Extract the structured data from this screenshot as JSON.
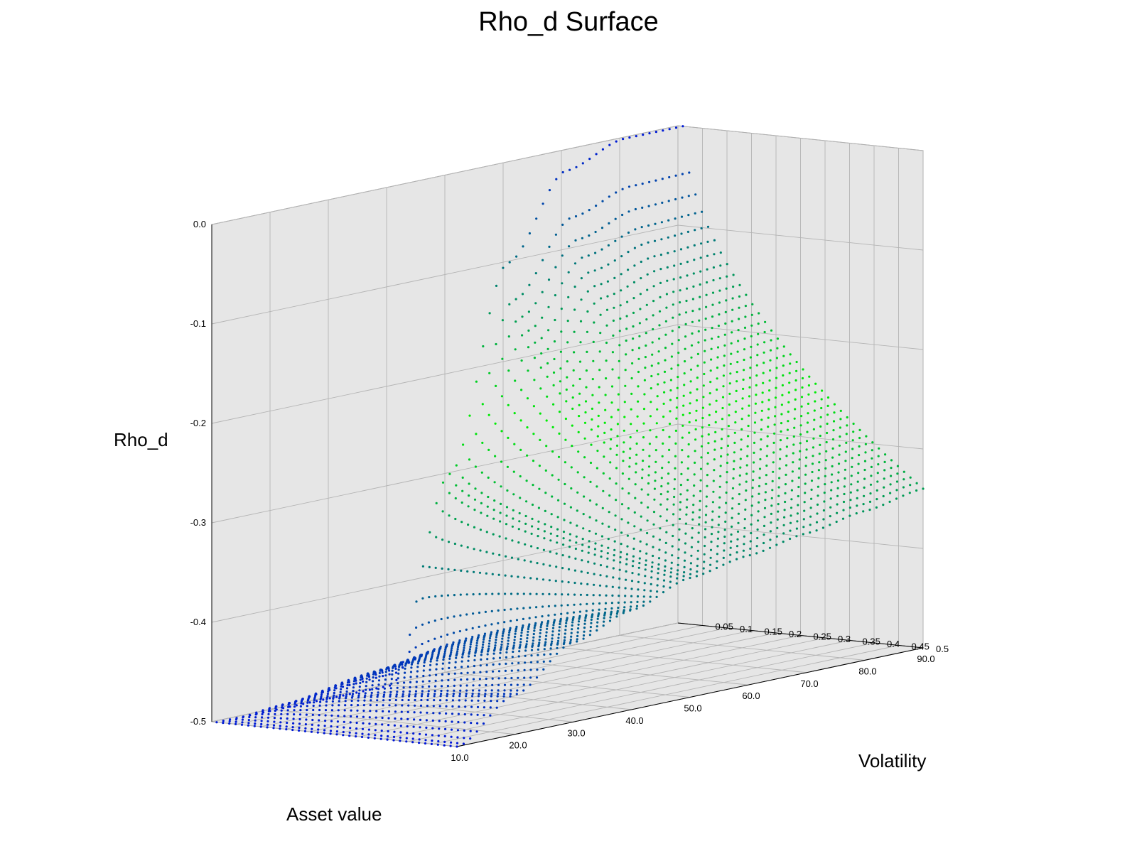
{
  "chart_data": {
    "type": "scatter",
    "title": "Rho_d Surface",
    "xlabel": "Asset value",
    "ylabel": "Volatility",
    "zlabel": "Rho_d",
    "x_ticks": [
      "10.0",
      "20.0",
      "30.0",
      "40.0",
      "50.0",
      "60.0",
      "70.0",
      "80.0",
      "90.0"
    ],
    "y_ticks": [
      "0.05",
      "0.1",
      "0.15",
      "0.2",
      "0.25",
      "0.3",
      "0.35",
      "0.4",
      "0.45",
      "0.5"
    ],
    "z_ticks": [
      "0.0",
      "-0.1",
      "-0.2",
      "-0.3",
      "-0.4",
      "-0.5"
    ],
    "xlim": [
      10,
      90
    ],
    "ylim": [
      0.0,
      0.5
    ],
    "zlim": [
      -0.5,
      0.0
    ],
    "grid": true,
    "colormap": [
      "#0010e0",
      "#00f000"
    ],
    "pane_color": "#e6e6e6",
    "grid_color": "#b4b4b4",
    "surface_samples": {
      "description_free": true,
      "asset_values": [
        10,
        20,
        30,
        40,
        50,
        60,
        70,
        80,
        90
      ],
      "volatilities": [
        0.01,
        0.1,
        0.2,
        0.3,
        0.4,
        0.5
      ],
      "rho_d_at_vol_0_01": [
        -0.5,
        -0.5,
        -0.5,
        -0.5,
        -0.3,
        -0.1,
        -0.02,
        0.0,
        0.0
      ],
      "rho_d_at_vol_0_5": [
        -0.5,
        -0.46,
        -0.42,
        -0.4,
        -0.38,
        -0.37,
        -0.36,
        -0.35,
        -0.34
      ]
    }
  }
}
